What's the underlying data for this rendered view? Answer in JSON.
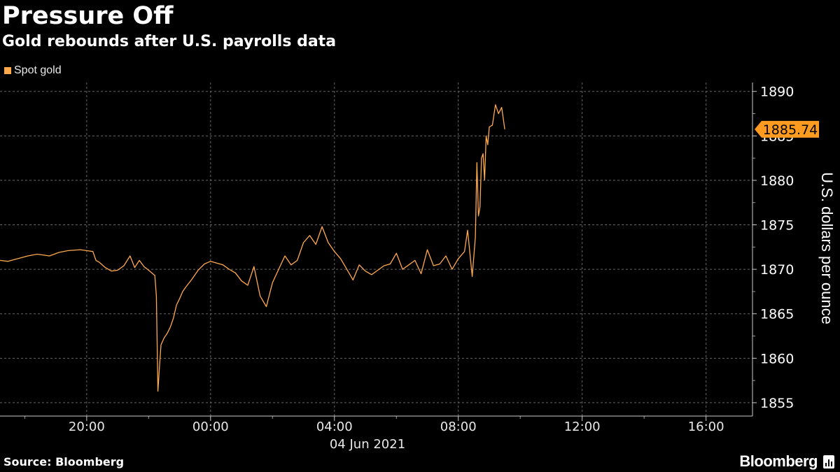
{
  "header": {
    "title": "Pressure Off",
    "subtitle": "Gold rebounds after U.S. payrolls data"
  },
  "legend": {
    "label": "Spot gold"
  },
  "last_value_label": "1885.74",
  "footer": {
    "source": "Source: Bloomberg",
    "brand": "Bloomberg"
  },
  "colors": {
    "series": "#ffa94d",
    "background": "#000000",
    "grid": "#666666",
    "text": "#ffffff",
    "badge": "#ff9b21"
  },
  "icons": {
    "brand": "bloomberg-chart-icon"
  },
  "chart_data": {
    "type": "line",
    "ylabel": "U.S. dollars per ounce",
    "ylim": [
      1853.5,
      1891
    ],
    "yticks": [
      1855,
      1860,
      1865,
      1870,
      1875,
      1880,
      1885,
      1890
    ],
    "xlim_hours": [
      -6.8,
      17.5
    ],
    "xticks": [
      {
        "hour": -4,
        "label": "20:00"
      },
      {
        "hour": 0,
        "label": "00:00"
      },
      {
        "hour": 4,
        "label": "04:00"
      },
      {
        "hour": 8,
        "label": "08:00"
      },
      {
        "hour": 12,
        "label": "12:00"
      },
      {
        "hour": 16,
        "label": "16:00"
      }
    ],
    "date_label": "04 Jun 2021",
    "series": [
      {
        "name": "Spot gold",
        "x": [
          -6.8,
          -6.55,
          -5.9,
          -5.6,
          -5.2,
          -4.9,
          -4.6,
          -4.2,
          -3.8,
          -3.7,
          -3.6,
          -3.4,
          -3.2,
          -3.0,
          -2.8,
          -2.6,
          -2.45,
          -2.3,
          -2.15,
          -2.0,
          -1.9,
          -1.8,
          -1.75,
          -1.7,
          -1.65,
          -1.6,
          -1.5,
          -1.4,
          -1.3,
          -1.2,
          -1.1,
          -1.0,
          -0.9,
          -0.8,
          -0.6,
          -0.4,
          -0.2,
          0.0,
          0.2,
          0.4,
          0.6,
          0.8,
          1.0,
          1.2,
          1.4,
          1.6,
          1.8,
          2.0,
          2.2,
          2.4,
          2.6,
          2.8,
          3.0,
          3.2,
          3.4,
          3.6,
          3.8,
          4.0,
          4.2,
          4.4,
          4.6,
          4.8,
          5.0,
          5.2,
          5.4,
          5.6,
          5.8,
          6.0,
          6.2,
          6.4,
          6.6,
          6.8,
          7.0,
          7.2,
          7.4,
          7.6,
          7.8,
          8.0,
          8.2,
          8.3,
          8.45,
          8.55,
          8.6,
          8.65,
          8.7,
          8.75,
          8.8,
          8.85,
          8.9,
          8.95,
          9.0,
          9.1,
          9.2,
          9.3,
          9.4,
          9.5
        ],
        "y": [
          1871.0,
          1870.9,
          1871.5,
          1871.7,
          1871.5,
          1871.9,
          1872.1,
          1872.2,
          1872.0,
          1871.0,
          1870.8,
          1870.2,
          1869.8,
          1869.9,
          1870.4,
          1871.5,
          1870.2,
          1871.0,
          1870.3,
          1869.9,
          1869.6,
          1869.3,
          1867.0,
          1856.3,
          1859.0,
          1861.5,
          1862.3,
          1862.8,
          1863.5,
          1864.5,
          1866.0,
          1866.7,
          1867.5,
          1868.0,
          1868.9,
          1869.9,
          1870.6,
          1870.9,
          1870.7,
          1870.5,
          1870.0,
          1869.6,
          1868.7,
          1868.2,
          1870.3,
          1867.0,
          1865.8,
          1868.5,
          1870.0,
          1871.5,
          1870.5,
          1871.0,
          1873.0,
          1873.8,
          1872.8,
          1874.8,
          1873.0,
          1872.0,
          1871.2,
          1870.0,
          1868.8,
          1870.5,
          1869.8,
          1869.4,
          1869.9,
          1870.4,
          1870.6,
          1871.8,
          1870.0,
          1870.5,
          1871.0,
          1869.5,
          1872.2,
          1870.4,
          1870.6,
          1871.5,
          1870.0,
          1871.2,
          1872.0,
          1874.4,
          1869.2,
          1873.6,
          1882.0,
          1876.0,
          1877.0,
          1882.5,
          1883.0,
          1880.0,
          1885.0,
          1884.0,
          1886.0,
          1886.2,
          1888.5,
          1887.5,
          1888.2,
          1885.74
        ]
      }
    ]
  }
}
